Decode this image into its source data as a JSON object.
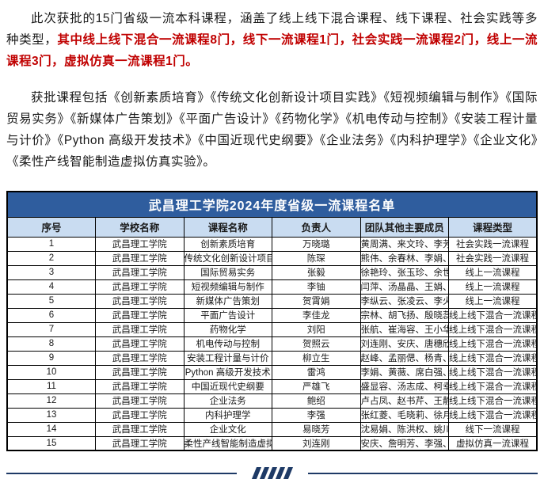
{
  "intro": {
    "para1_black": "此次获批的15门省级一流本科课程，涵盖了线上线下混合课程、线下课程、社会实践等多种类型，",
    "para1_red": "其中线上线下混合一流课程8门，线下一流课程1门，社会实践一流课程2门，线上一流课程3门，虚拟仿真一流课程1门。",
    "para2": "获批课程包括《创新素质培育》《传统文化创新设计项目实践》《短视频编辑与制作》《国际贸易实务》《新媒体广告策划》《平面广告设计》《药物化学》《机电传动与控制》《安装工程计量与计价》《Python 高级开发技术》《中国近现代史纲要》《企业法务》《内科护理学》《企业文化》《柔性产线智能制造虚拟仿真实验》。"
  },
  "table": {
    "title": "武昌理工学院2024年度省级一流课程名单",
    "headers": [
      "序号",
      "学校名称",
      "课程名称",
      "负责人",
      "团队其他主要成员",
      "课程类型"
    ],
    "col_keys": [
      "index",
      "school",
      "course",
      "leader",
      "members",
      "type"
    ],
    "rows": [
      [
        "1",
        "武昌理工学院",
        "创新素质培育",
        "万晓璐",
        "黄周满、来文玲、李芳、芦珊",
        "社会实践一流课程"
      ],
      [
        "2",
        "武昌理工学院",
        "传统文化创新设计项目实践",
        "陈琛",
        "熊伟、余春林、李娟、张为",
        "社会实践一流课程"
      ],
      [
        "3",
        "武昌理工学院",
        "国际贸易实务",
        "张毅",
        "徐艳玲、张玉珍、余世文、徐甜",
        "线上一流课程"
      ],
      [
        "4",
        "武昌理工学院",
        "短视频编辑与制作",
        "李铀",
        "闫萍、汤晶晶、王娟、庹坤",
        "线上一流课程"
      ],
      [
        "5",
        "武昌理工学院",
        "新媒体广告策划",
        "贺霄娟",
        "李纵云、张凌云、李火生",
        "线上一流课程"
      ],
      [
        "6",
        "武昌理工学院",
        "平面广告设计",
        "李佳龙",
        "宗林、胡飞扬、殷晓蕊、杨梦姗",
        "线上线下混合一流课程"
      ],
      [
        "7",
        "武昌理工学院",
        "药物化学",
        "刘阳",
        "张航、崔海容、王小华",
        "线上线下混合一流课程"
      ],
      [
        "8",
        "武昌理工学院",
        "机电传动与控制",
        "贺照云",
        "刘连刚、安庆、唐穗欣、费国标",
        "线上线下混合一流课程"
      ],
      [
        "9",
        "武昌理工学院",
        "安装工程计量与计价",
        "柳立生",
        "赵峰、孟丽偲、杨青、王刚",
        "线上线下混合一流课程"
      ],
      [
        "10",
        "武昌理工学院",
        "Python 高级开发技术",
        "雷鸿",
        "李娟、黄薇、席白强、刘峰",
        "线上线下混合一流课程"
      ],
      [
        "11",
        "武昌理工学院",
        "中国近现代史纲要",
        "严雄飞",
        "盛显容、汤志成、柯幸福、潘小丽",
        "线上线下混合一流课程"
      ],
      [
        "12",
        "武昌理工学院",
        "企业法务",
        "鲍绍",
        "卢占凤、赵书芹、王静、李芬",
        "线上线下混合一流课程"
      ],
      [
        "13",
        "武昌理工学院",
        "内科护理学",
        "李强",
        "张红菱、毛晓莉、徐月君、李文琪",
        "线上线下混合一流课程"
      ],
      [
        "14",
        "武昌理工学院",
        "企业文化",
        "易晓芳",
        "沈易娟、陈洪权、姚川、王颖",
        "线下一流课程"
      ],
      [
        "15",
        "武昌理工学院",
        "柔性产线智能制造虚拟仿真实验",
        "刘连刚",
        "安庆、詹明芳、李强、贺照云",
        "虚拟仿真一流课程"
      ]
    ]
  },
  "colors": {
    "title_bg": "#2f5d9e",
    "header_bg": "#c9dcf1",
    "red_text": "#c00000",
    "divider": "#1e3a66"
  }
}
